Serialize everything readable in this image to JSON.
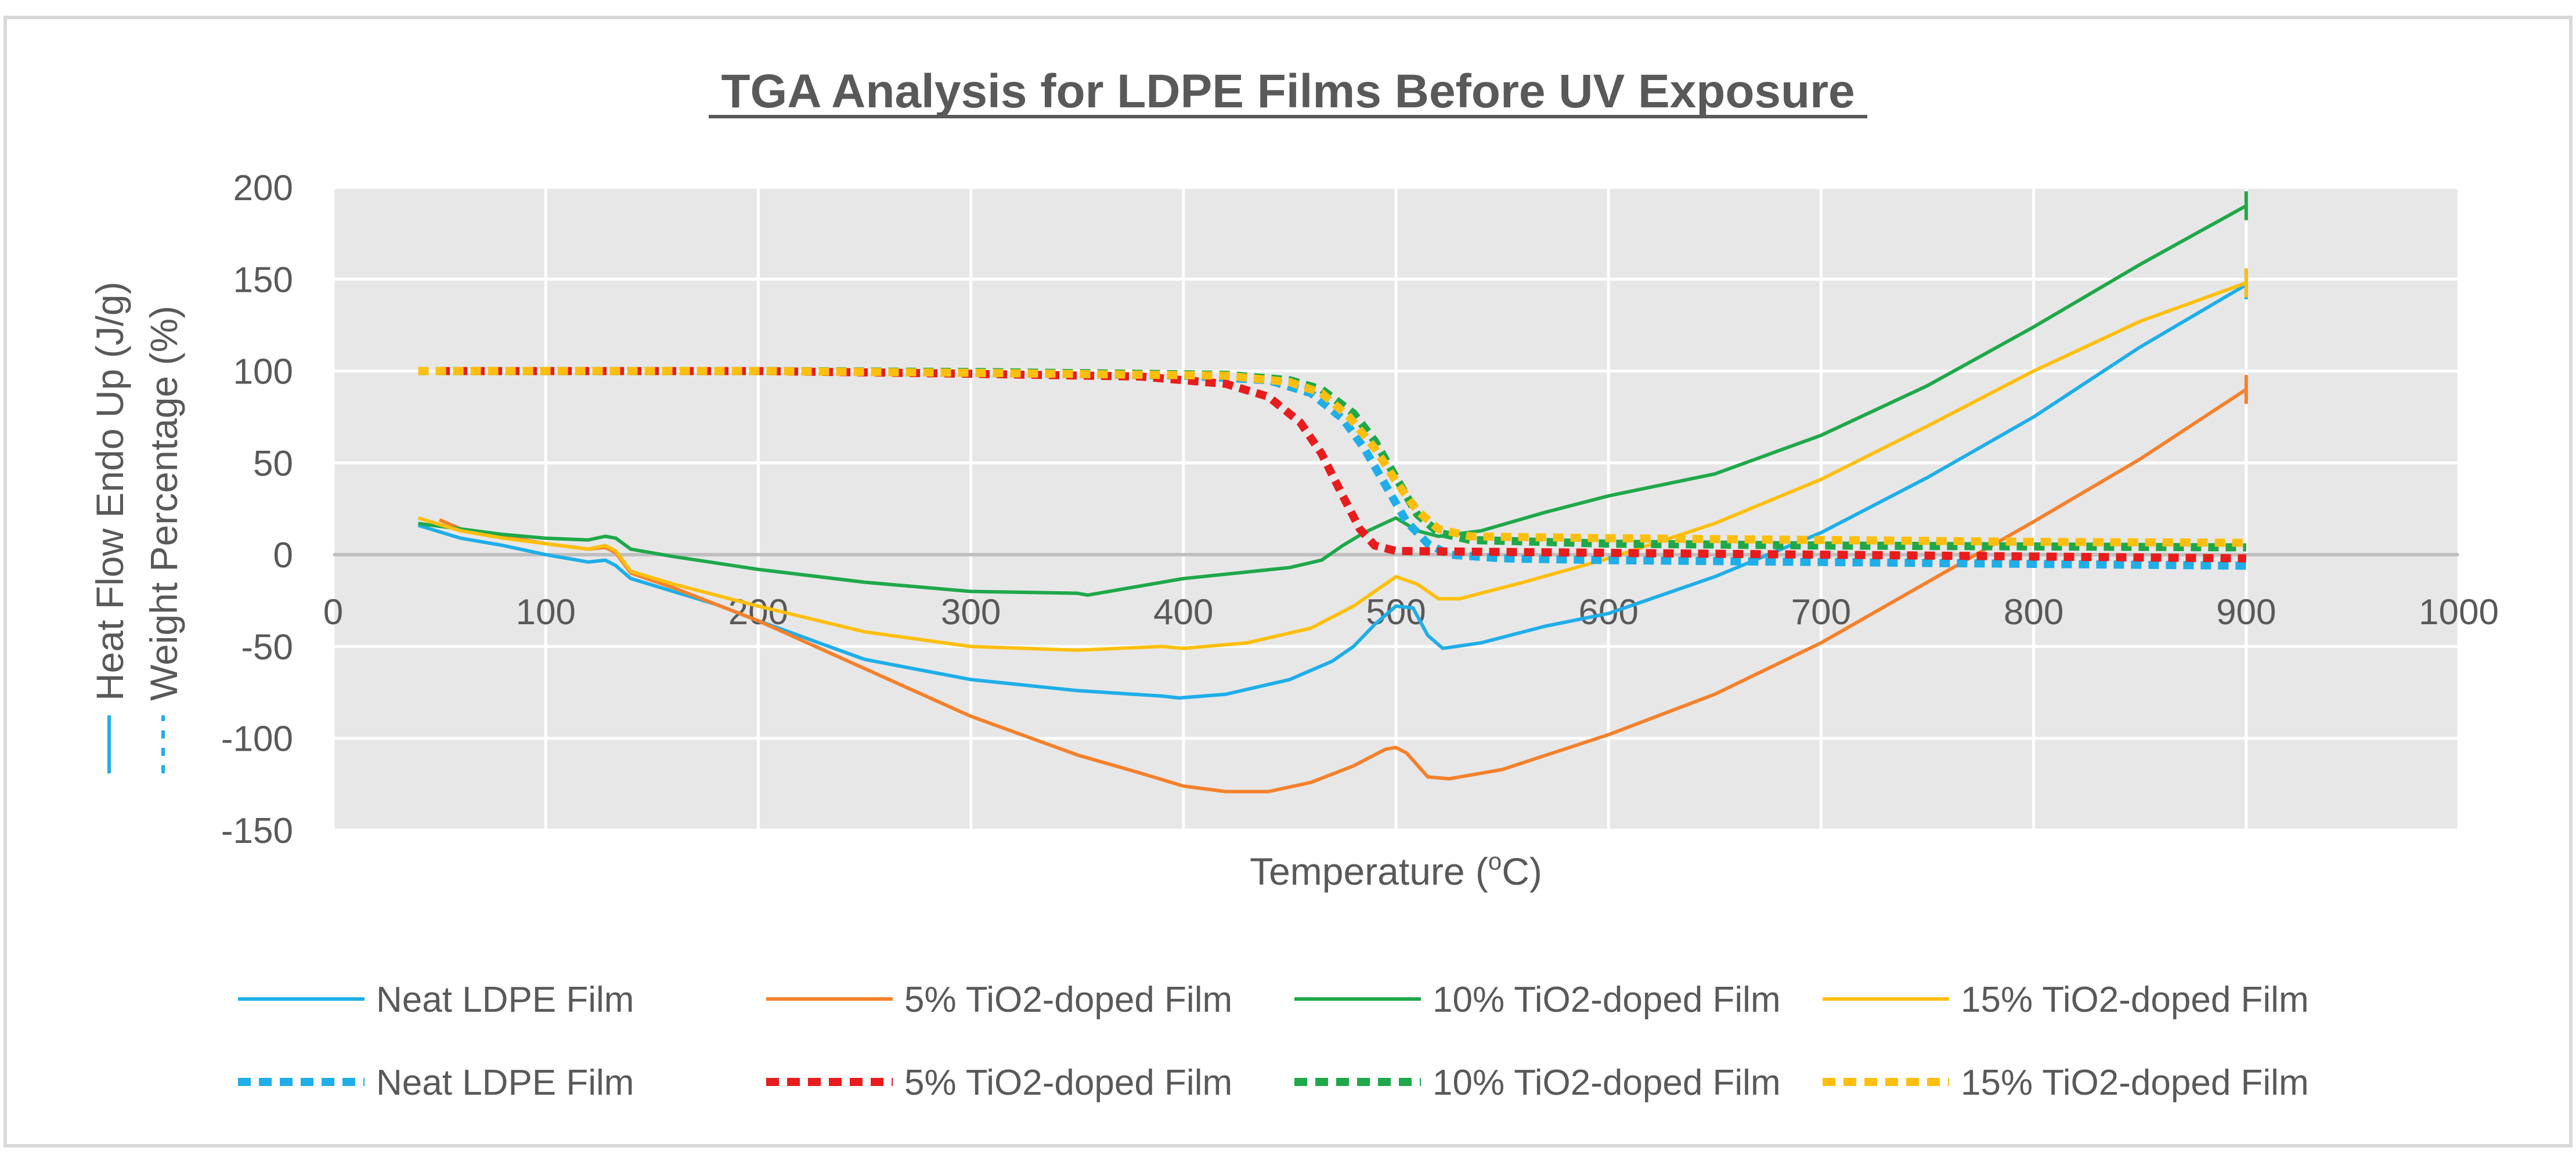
{
  "colors": {
    "frame": "#d9d9d9",
    "plot_bg": "#e7e7e7",
    "grid": "#ffffff",
    "zero_line": "#bfbfbf",
    "text": "#595959",
    "title": "#595959",
    "legend_marker": "#00b0f0"
  },
  "chart_data": {
    "type": "line",
    "title": "TGA Analysis for LDPE Films Before UV Exposure",
    "xlabel": "Temperature (",
    "xlabel_sup": "o",
    "xlabel_tail": "C)",
    "ylabel_solid": "Heat Flow Endo Up (J/g)",
    "ylabel_dashed": "Weight Percentage (%)",
    "xlim": [
      0,
      1000
    ],
    "ylim": [
      -150,
      200
    ],
    "xticks": [
      "0",
      "100",
      "200",
      "300",
      "400",
      "500",
      "600",
      "700",
      "800",
      "900",
      "1000"
    ],
    "yticks": [
      "200",
      "150",
      "100",
      "50",
      "0",
      "-50",
      "-100",
      "-150"
    ],
    "grid": true,
    "legend_position": "bottom",
    "series": [
      {
        "name": "Neat LDPE Film",
        "kind": "heat_flow",
        "style": "solid",
        "color": "#1faee8",
        "points": [
          [
            40,
            16
          ],
          [
            60,
            9
          ],
          [
            80,
            5
          ],
          [
            100,
            0
          ],
          [
            120,
            -4
          ],
          [
            128,
            -3
          ],
          [
            133,
            -6
          ],
          [
            140,
            -13
          ],
          [
            160,
            -20
          ],
          [
            180,
            -27
          ],
          [
            200,
            -36
          ],
          [
            250,
            -57
          ],
          [
            300,
            -68
          ],
          [
            350,
            -74
          ],
          [
            390,
            -77
          ],
          [
            398,
            -78
          ],
          [
            420,
            -76
          ],
          [
            450,
            -68
          ],
          [
            470,
            -58
          ],
          [
            480,
            -50
          ],
          [
            490,
            -38
          ],
          [
            500,
            -28
          ],
          [
            508,
            -29
          ],
          [
            515,
            -44
          ],
          [
            522,
            -51
          ],
          [
            540,
            -48
          ],
          [
            570,
            -39
          ],
          [
            600,
            -32
          ],
          [
            650,
            -12
          ],
          [
            700,
            12
          ],
          [
            750,
            42
          ],
          [
            800,
            75
          ],
          [
            850,
            113
          ],
          [
            900,
            147
          ]
        ]
      },
      {
        "name": "5% TiO2-doped Film",
        "kind": "heat_flow",
        "style": "solid",
        "color": "#f4812c",
        "points": [
          [
            50,
            19
          ],
          [
            60,
            14
          ],
          [
            80,
            10
          ],
          [
            100,
            6
          ],
          [
            120,
            3
          ],
          [
            128,
            4
          ],
          [
            133,
            1
          ],
          [
            140,
            -10
          ],
          [
            160,
            -18
          ],
          [
            200,
            -36
          ],
          [
            250,
            -62
          ],
          [
            300,
            -88
          ],
          [
            350,
            -109
          ],
          [
            380,
            -119
          ],
          [
            400,
            -126
          ],
          [
            420,
            -129
          ],
          [
            440,
            -129
          ],
          [
            460,
            -124
          ],
          [
            480,
            -115
          ],
          [
            495,
            -106
          ],
          [
            500,
            -105
          ],
          [
            505,
            -108
          ],
          [
            515,
            -121
          ],
          [
            525,
            -122
          ],
          [
            550,
            -117
          ],
          [
            600,
            -98
          ],
          [
            650,
            -76
          ],
          [
            700,
            -48
          ],
          [
            750,
            -15
          ],
          [
            800,
            18
          ],
          [
            850,
            52
          ],
          [
            900,
            90
          ]
        ]
      },
      {
        "name": "10% TiO2-doped Film",
        "kind": "heat_flow",
        "style": "solid",
        "color": "#1fa84a",
        "points": [
          [
            40,
            17
          ],
          [
            60,
            14
          ],
          [
            80,
            11
          ],
          [
            100,
            9
          ],
          [
            120,
            8
          ],
          [
            128,
            10
          ],
          [
            133,
            9
          ],
          [
            140,
            3
          ],
          [
            160,
            -1
          ],
          [
            200,
            -8
          ],
          [
            250,
            -15
          ],
          [
            300,
            -20
          ],
          [
            350,
            -21
          ],
          [
            355,
            -22
          ],
          [
            400,
            -13
          ],
          [
            450,
            -7
          ],
          [
            465,
            -3
          ],
          [
            475,
            5
          ],
          [
            485,
            12
          ],
          [
            500,
            20
          ],
          [
            510,
            13
          ],
          [
            520,
            10
          ],
          [
            540,
            13
          ],
          [
            570,
            23
          ],
          [
            600,
            32
          ],
          [
            650,
            44
          ],
          [
            700,
            65
          ],
          [
            750,
            92
          ],
          [
            800,
            124
          ],
          [
            850,
            158
          ],
          [
            900,
            190
          ]
        ]
      },
      {
        "name": "15% TiO2-doped Film",
        "kind": "heat_flow",
        "style": "solid",
        "color": "#fdbf0f",
        "points": [
          [
            40,
            20
          ],
          [
            60,
            13
          ],
          [
            80,
            9
          ],
          [
            100,
            6
          ],
          [
            120,
            3
          ],
          [
            128,
            5
          ],
          [
            133,
            2
          ],
          [
            140,
            -9
          ],
          [
            160,
            -16
          ],
          [
            200,
            -28
          ],
          [
            250,
            -42
          ],
          [
            300,
            -50
          ],
          [
            350,
            -52
          ],
          [
            390,
            -50
          ],
          [
            400,
            -51
          ],
          [
            430,
            -48
          ],
          [
            460,
            -40
          ],
          [
            480,
            -28
          ],
          [
            490,
            -20
          ],
          [
            500,
            -12
          ],
          [
            510,
            -16
          ],
          [
            520,
            -24
          ],
          [
            530,
            -24
          ],
          [
            560,
            -15
          ],
          [
            600,
            -2
          ],
          [
            650,
            17
          ],
          [
            700,
            41
          ],
          [
            750,
            70
          ],
          [
            800,
            100
          ],
          [
            850,
            127
          ],
          [
            900,
            148
          ]
        ]
      },
      {
        "name": "Neat LDPE Film",
        "kind": "weight",
        "style": "dashed",
        "color": "#1faee8",
        "points": [
          [
            40,
            100
          ],
          [
            200,
            100
          ],
          [
            300,
            99
          ],
          [
            400,
            97.5
          ],
          [
            440,
            95
          ],
          [
            460,
            88
          ],
          [
            475,
            74
          ],
          [
            485,
            58
          ],
          [
            495,
            38
          ],
          [
            505,
            18
          ],
          [
            515,
            6
          ],
          [
            525,
            0
          ],
          [
            550,
            -2
          ],
          [
            600,
            -3
          ],
          [
            700,
            -4
          ],
          [
            800,
            -5
          ],
          [
            900,
            -6
          ]
        ]
      },
      {
        "name": "5% TiO2-doped Film",
        "kind": "weight",
        "style": "dashed",
        "color": "#e81c1c",
        "points": [
          [
            50,
            100
          ],
          [
            200,
            100
          ],
          [
            300,
            98.5
          ],
          [
            380,
            97
          ],
          [
            420,
            93
          ],
          [
            440,
            86
          ],
          [
            455,
            72
          ],
          [
            465,
            55
          ],
          [
            475,
            32
          ],
          [
            483,
            14
          ],
          [
            490,
            5
          ],
          [
            500,
            2
          ],
          [
            600,
            1
          ],
          [
            700,
            0
          ],
          [
            800,
            -1
          ],
          [
            900,
            -2
          ]
        ]
      },
      {
        "name": "10% TiO2-doped Film",
        "kind": "weight",
        "style": "dashed",
        "color": "#1fa84a",
        "points": [
          [
            40,
            100
          ],
          [
            200,
            100
          ],
          [
            300,
            99.5
          ],
          [
            420,
            98
          ],
          [
            450,
            95
          ],
          [
            465,
            90
          ],
          [
            480,
            77
          ],
          [
            490,
            62
          ],
          [
            500,
            42
          ],
          [
            510,
            22
          ],
          [
            520,
            12
          ],
          [
            535,
            8
          ],
          [
            600,
            6
          ],
          [
            700,
            5
          ],
          [
            800,
            4.5
          ],
          [
            900,
            4
          ]
        ]
      },
      {
        "name": "15% TiO2-doped Film",
        "kind": "weight",
        "style": "dashed",
        "color": "#fdbf0f",
        "points": [
          [
            40,
            100
          ],
          [
            200,
            100
          ],
          [
            300,
            99
          ],
          [
            420,
            97.5
          ],
          [
            450,
            94
          ],
          [
            465,
            88
          ],
          [
            478,
            75
          ],
          [
            490,
            58
          ],
          [
            500,
            40
          ],
          [
            510,
            24
          ],
          [
            520,
            14
          ],
          [
            535,
            10
          ],
          [
            600,
            9
          ],
          [
            700,
            8
          ],
          [
            800,
            7
          ],
          [
            900,
            6.5
          ]
        ]
      }
    ]
  }
}
